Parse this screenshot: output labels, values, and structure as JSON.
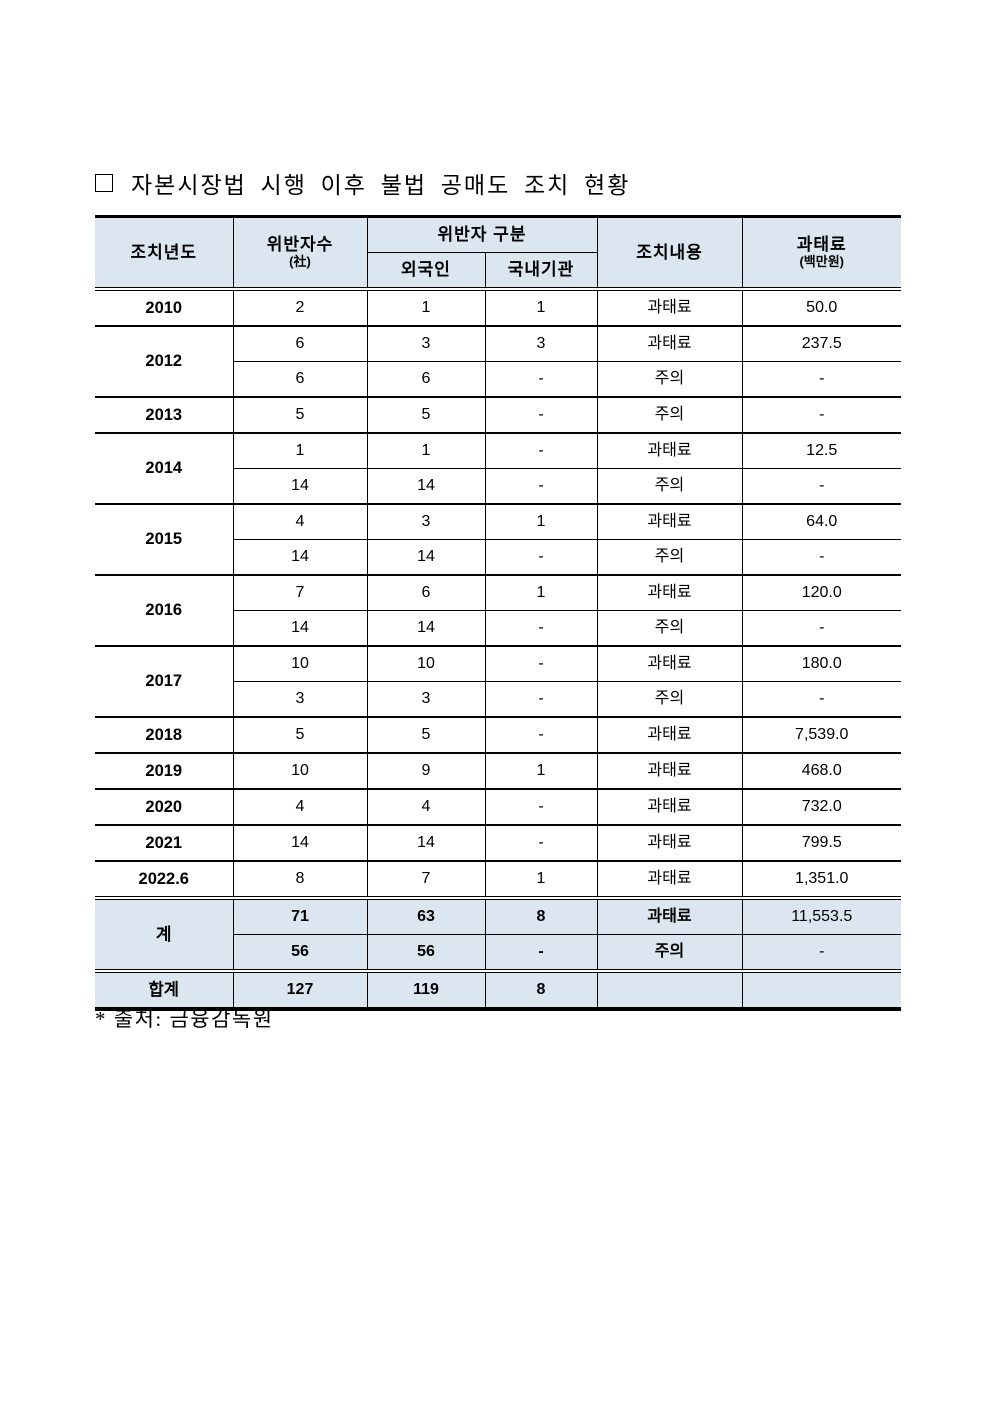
{
  "page": {
    "title": "자본시장법 시행 이후 불법 공매도 조치 현황",
    "source_note": "* 출처: 금융감독원"
  },
  "table": {
    "colors": {
      "header_bg": "#dce6f1",
      "border": "#000000"
    },
    "header": {
      "col_year": "조치년도",
      "col_violators": "위반자수",
      "col_violators_unit": "(社)",
      "col_category": "위반자 구분",
      "col_foreign": "외국인",
      "col_domestic": "국내기관",
      "col_action": "조치내용",
      "col_fine": "과태료",
      "col_fine_unit": "(백만원)"
    },
    "groups": [
      {
        "year": "2010",
        "rows": [
          [
            "2",
            "1",
            "1",
            "과태료",
            "50.0"
          ]
        ]
      },
      {
        "year": "2012",
        "rows": [
          [
            "6",
            "3",
            "3",
            "과태료",
            "237.5"
          ],
          [
            "6",
            "6",
            "-",
            "주의",
            "-"
          ]
        ]
      },
      {
        "year": "2013",
        "rows": [
          [
            "5",
            "5",
            "-",
            "주의",
            "-"
          ]
        ]
      },
      {
        "year": "2014",
        "rows": [
          [
            "1",
            "1",
            "-",
            "과태료",
            "12.5"
          ],
          [
            "14",
            "14",
            "-",
            "주의",
            "-"
          ]
        ]
      },
      {
        "year": "2015",
        "rows": [
          [
            "4",
            "3",
            "1",
            "과태료",
            "64.0"
          ],
          [
            "14",
            "14",
            "-",
            "주의",
            "-"
          ]
        ]
      },
      {
        "year": "2016",
        "rows": [
          [
            "7",
            "6",
            "1",
            "과태료",
            "120.0"
          ],
          [
            "14",
            "14",
            "-",
            "주의",
            "-"
          ]
        ]
      },
      {
        "year": "2017",
        "rows": [
          [
            "10",
            "10",
            "-",
            "과태료",
            "180.0"
          ],
          [
            "3",
            "3",
            "-",
            "주의",
            "-"
          ]
        ]
      },
      {
        "year": "2018",
        "rows": [
          [
            "5",
            "5",
            "-",
            "과태료",
            "7,539.0"
          ]
        ]
      },
      {
        "year": "2019",
        "rows": [
          [
            "10",
            "9",
            "1",
            "과태료",
            "468.0"
          ]
        ]
      },
      {
        "year": "2020",
        "rows": [
          [
            "4",
            "4",
            "-",
            "과태료",
            "732.0"
          ]
        ]
      },
      {
        "year": "2021",
        "rows": [
          [
            "14",
            "14",
            "-",
            "과태료",
            "799.5"
          ]
        ]
      },
      {
        "year": "2022.6",
        "rows": [
          [
            "8",
            "7",
            "1",
            "과태료",
            "1,351.0"
          ]
        ]
      }
    ],
    "subtotal": {
      "year": "계",
      "rows": [
        [
          "71",
          "63",
          "8",
          "과태료",
          "11,553.5"
        ],
        [
          "56",
          "56",
          "-",
          "주의",
          "-"
        ]
      ]
    },
    "grand_total": {
      "year": "합계",
      "rows": [
        [
          "127",
          "119",
          "8",
          "",
          ""
        ]
      ]
    }
  }
}
